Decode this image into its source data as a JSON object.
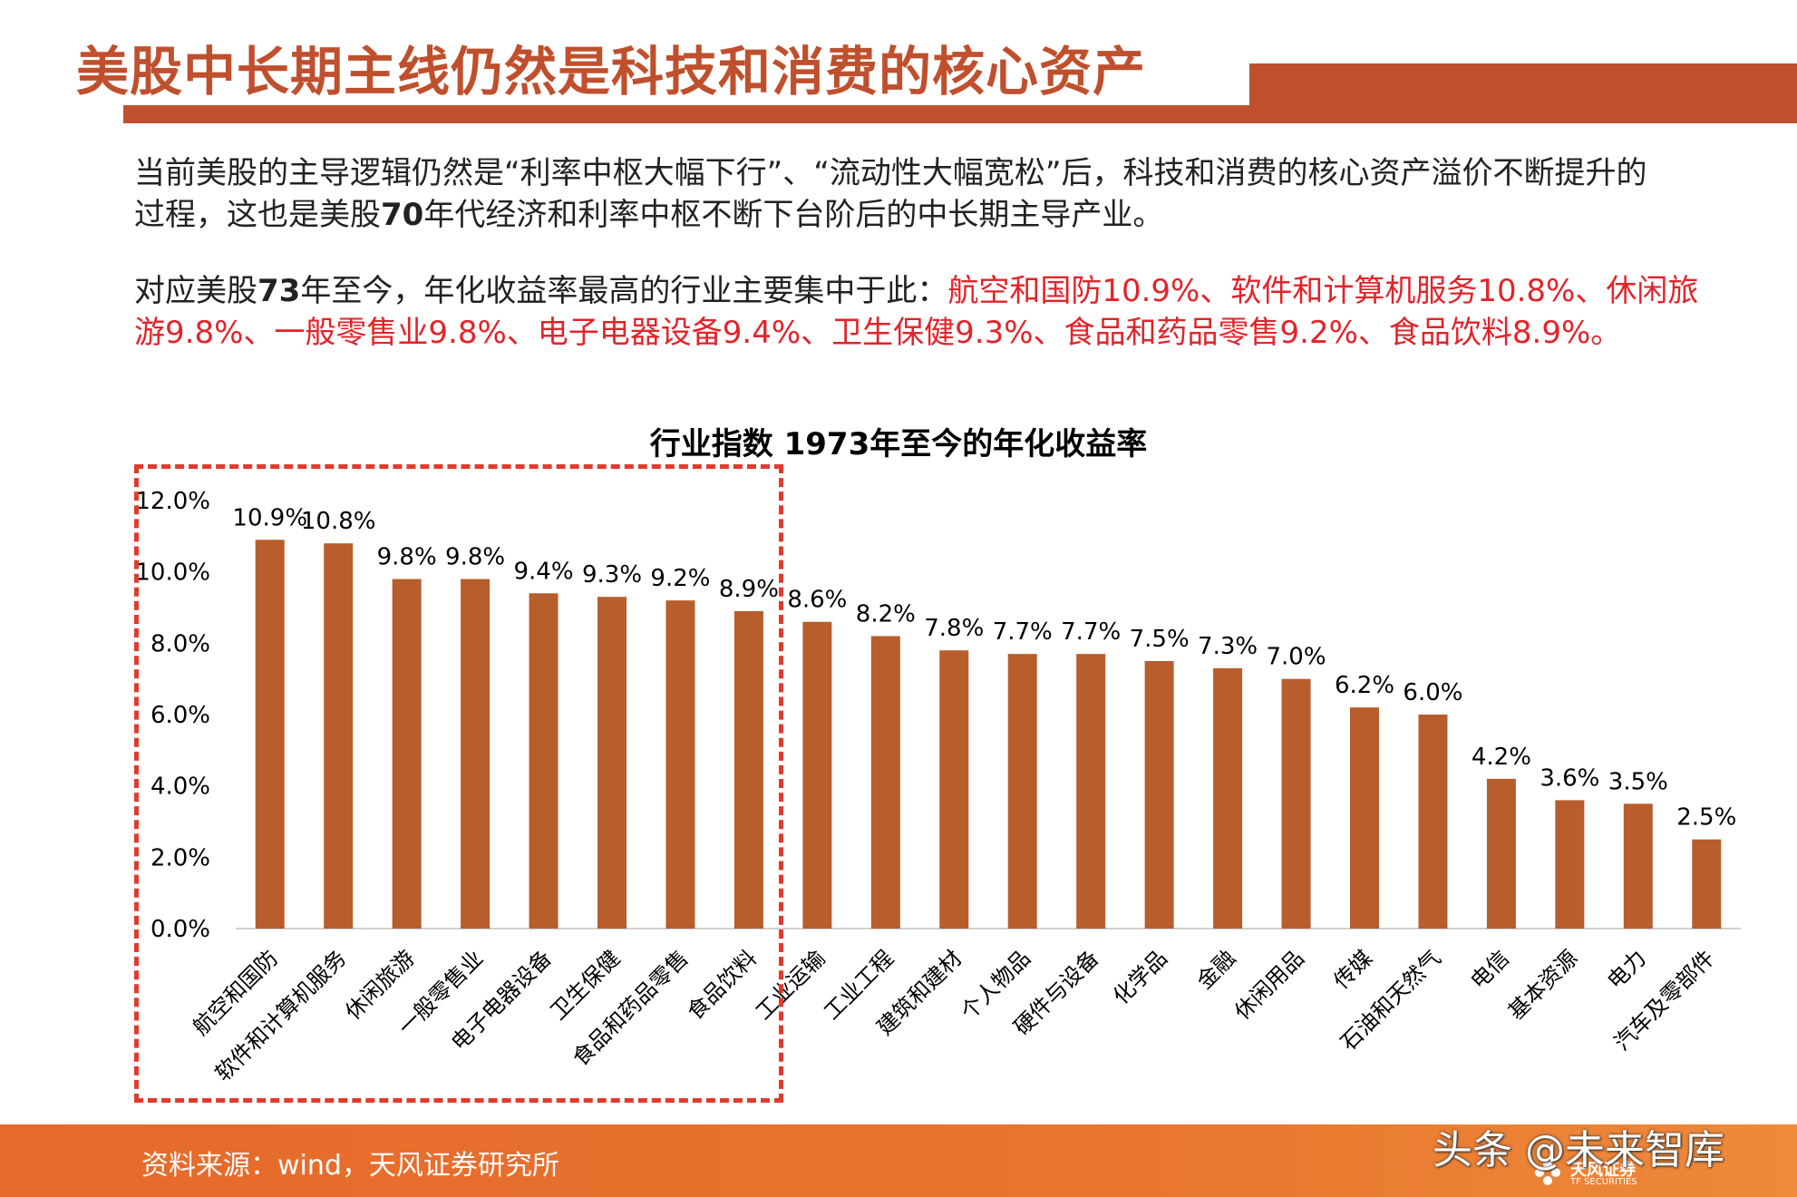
{
  "header": {
    "title": "美股中长期主线仍然是科技和消费的核心资产"
  },
  "paragraph1": {
    "line1": "当前美股的主导逻辑仍然是“利率中枢大幅下行”、“流动性大幅宽松”后，科技和消费的核心资产溢价不断提升的",
    "line2a": "过程，这也是美股",
    "line2b": "70",
    "line2c": "年代经济和利率中枢不断下台阶后的中长期主导产业。"
  },
  "paragraph2": {
    "line1a": "对应美股",
    "line1b": "73",
    "line1c": "年至今，年化收益率最高的行业主要集中于此：",
    "line1d": "航空和国防10.9%、软件和计算机服务10.8%、休闲旅",
    "line2": "游9.8%、一般零售业9.8%、电子电器设备9.4%、卫生保健9.3%、食品和药品零售9.2%、食品饮料8.9%。"
  },
  "chart_data": {
    "type": "bar",
    "title": "行业指数 1973年至今的年化收益率",
    "categories": [
      "航空和国防",
      "软件和计算机服务",
      "休闲旅游",
      "一般零售业",
      "电子电器设备",
      "卫生保健",
      "食品和药品零售",
      "食品饮料",
      "工业运输",
      "工业工程",
      "建筑和建材",
      "个人物品",
      "硬件与设备",
      "化学品",
      "金融",
      "休闲用品",
      "传媒",
      "石油和天然气",
      "电信",
      "基本资源",
      "电力",
      "汽车及零部件"
    ],
    "values": [
      10.9,
      10.8,
      9.8,
      9.8,
      9.4,
      9.3,
      9.2,
      8.9,
      8.6,
      8.2,
      7.8,
      7.7,
      7.7,
      7.5,
      7.3,
      7.0,
      6.2,
      6.0,
      4.2,
      3.6,
      3.5,
      2.5
    ],
    "value_labels": [
      "10.9%",
      "10.8%",
      "9.8%",
      "9.8%",
      "9.4%",
      "9.3%",
      "9.2%",
      "8.9%",
      "8.6%",
      "8.2%",
      "7.8%",
      "7.7%",
      "7.7%",
      "7.5%",
      "7.3%",
      "7.0%",
      "6.2%",
      "6.0%",
      "4.2%",
      "3.6%",
      "3.5%",
      "2.5%"
    ],
    "yticks": [
      "0.0%",
      "2.0%",
      "4.0%",
      "6.0%",
      "8.0%",
      "10.0%",
      "12.0%"
    ],
    "ylim": [
      0,
      12
    ],
    "bar_color": "#b85d2c",
    "highlight_color": "#e03b2e",
    "highlight_count": 8,
    "grid": false
  },
  "footer": {
    "source": "资料来源：wind，天风证券研究所",
    "watermark": "头条 @未来智库",
    "logo_name": "天风证券",
    "logo_sub": "TF SECURITIES"
  }
}
